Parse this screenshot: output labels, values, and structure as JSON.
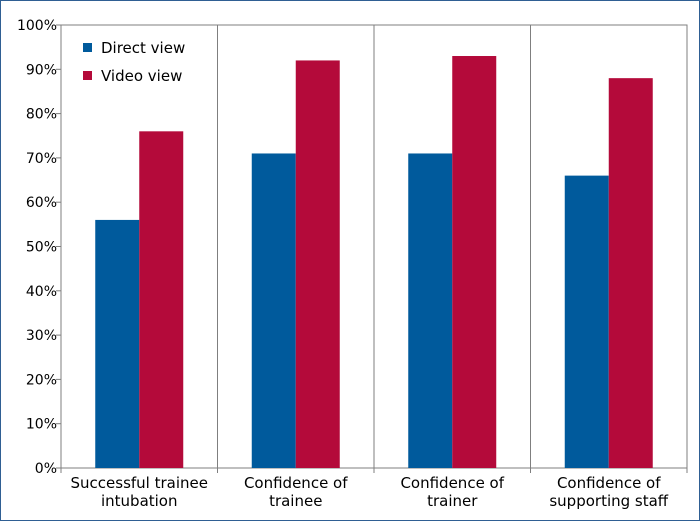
{
  "chart_data": {
    "type": "bar",
    "title": "",
    "xlabel": "",
    "ylabel": "",
    "categories": [
      [
        "Successful trainee",
        "intubation"
      ],
      [
        "Confidence of",
        "trainee"
      ],
      [
        "Confidence of",
        "trainer"
      ],
      [
        "Confidence of",
        "supporting staff"
      ]
    ],
    "series": [
      {
        "name": "Direct view",
        "color": "#005a9c",
        "values": [
          56,
          71,
          71,
          66
        ]
      },
      {
        "name": "Video view",
        "color": "#b40a3a",
        "values": [
          76,
          92,
          93,
          88
        ]
      }
    ],
    "ylim": [
      0,
      100
    ],
    "y_ticks": [
      "0%",
      "10%",
      "20%",
      "30%",
      "40%",
      "50%",
      "60%",
      "70%",
      "80%",
      "90%",
      "100%"
    ],
    "grid": "vertical category separators",
    "legend_position": "top-left"
  }
}
